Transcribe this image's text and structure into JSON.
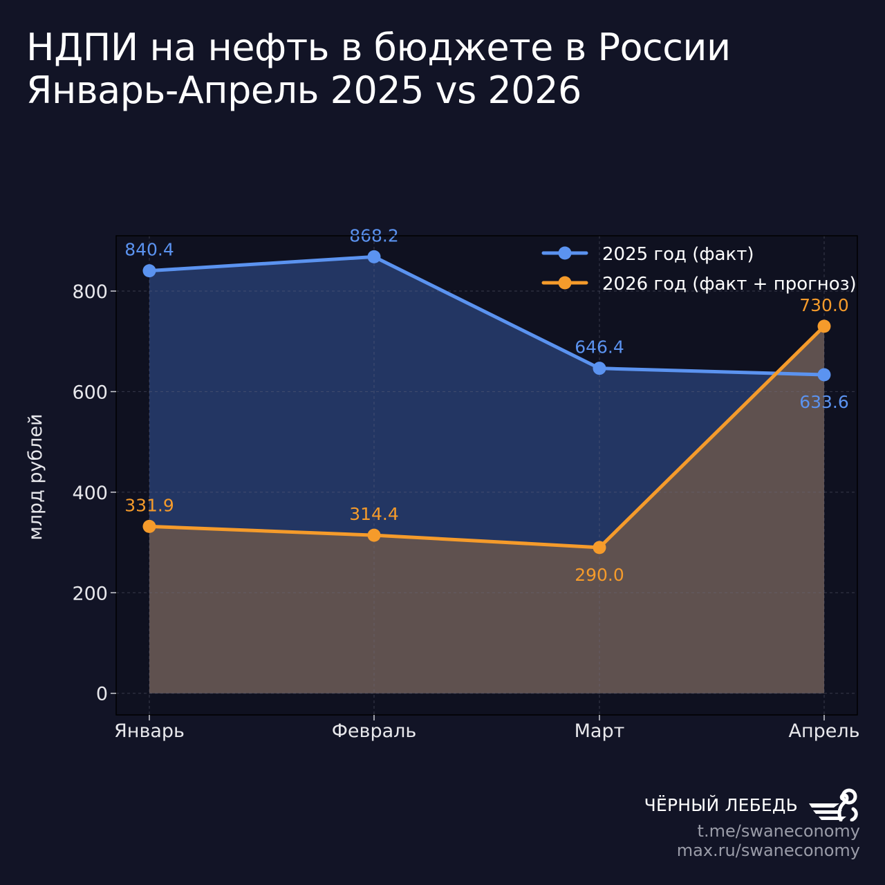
{
  "header": {
    "title_line1": "НДПИ на нефть в бюджете в России",
    "title_line2": "Январь-Апрель 2025 vs 2026"
  },
  "brand": {
    "name": "ЧЁРНЫЙ ЛЕБЕДЬ",
    "link1": "t.me/swaneconomy",
    "link2": "max.ru/swaneconomy",
    "logo_icon": "swan-logo-icon"
  },
  "chart_data": {
    "type": "line",
    "categories": [
      "Январь",
      "Февраль",
      "Март",
      "Апрель"
    ],
    "ylabel": "млрд рублей",
    "xlabel": "",
    "ylim": [
      -43,
      910
    ],
    "yticks": [
      0,
      200,
      400,
      600,
      800
    ],
    "grid": true,
    "legend_position": "top-right",
    "series": [
      {
        "name": "2025 год (факт)",
        "values": [
          840.4,
          868.2,
          646.4,
          633.6
        ],
        "labels": [
          "840.4",
          "868.2",
          "646.4",
          "633.6"
        ],
        "color": "#5b93f0",
        "fill": "#233663"
      },
      {
        "name": "2026 год (факт + прогноз)",
        "values": [
          331.9,
          314.4,
          290.0,
          730.0
        ],
        "labels": [
          "331.9",
          "314.4",
          "290.0",
          "730.0"
        ],
        "color": "#f59b2b",
        "fill": "#5f514f"
      }
    ]
  }
}
